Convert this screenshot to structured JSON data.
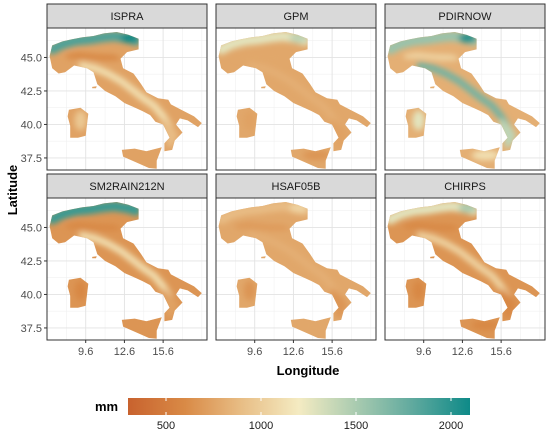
{
  "chart_data": {
    "type": "heatmap",
    "title": "",
    "xlabel": "Longitude",
    "ylabel": "Latitude",
    "x_ticks": [
      9.6,
      12.6,
      15.6
    ],
    "x_tick_labels": [
      "9.6",
      "12.6",
      "15.6"
    ],
    "y_ticks": [
      37.5,
      40.0,
      42.5,
      45.0
    ],
    "y_tick_labels": [
      "37.5",
      "40.0",
      "42.5",
      "45.0"
    ],
    "xlim": [
      6.6,
      19.0
    ],
    "ylim": [
      36.6,
      47.2
    ],
    "grid": true,
    "panels": [
      {
        "label": "ISPRA",
        "peak": 1.0,
        "alps": 0.85,
        "apennines": 0.35,
        "sardinia": 0.25,
        "sicily": 0.1,
        "south": 0.2,
        "valley": -0.25,
        "base": 0.1
      },
      {
        "label": "GPM",
        "peak": 0.55,
        "alps": 0.45,
        "apennines": 0.15,
        "sardinia": 0.1,
        "sicily": 0.05,
        "south": 0.1,
        "valley": 0.0,
        "base": 0.12
      },
      {
        "label": "PDIRNOW",
        "peak": 0.95,
        "alps": 0.65,
        "apennines": 0.75,
        "sardinia": 0.45,
        "sicily": 0.35,
        "south": 0.55,
        "valley": 0.15,
        "base": 0.15
      },
      {
        "label": "SM2RAIN212N",
        "peak": 0.9,
        "alps": 0.9,
        "apennines": 0.35,
        "sardinia": 0.0,
        "sicily": 0.05,
        "south": 0.1,
        "valley": -0.35,
        "base": 0.05
      },
      {
        "label": "HSAF05B",
        "peak": 0.3,
        "alps": 0.2,
        "apennines": 0.15,
        "sardinia": 0.05,
        "sicily": 0.12,
        "south": 0.05,
        "valley": -0.05,
        "base": 0.12
      },
      {
        "label": "CHIRPS",
        "peak": 0.6,
        "alps": 0.45,
        "apennines": 0.3,
        "sardinia": -0.1,
        "sicily": -0.05,
        "south": -0.1,
        "valley": -0.2,
        "base": 0.05
      }
    ],
    "legend": {
      "title": "mm",
      "placement": "bottom",
      "range": [
        300,
        2100
      ],
      "ticks": [
        500,
        1000,
        1500,
        2000
      ],
      "tick_labels": [
        "500",
        "1000",
        "1500",
        "2000"
      ],
      "colors": [
        "#c8622e",
        "#d98a46",
        "#e8be86",
        "#f4ebc2",
        "#a9cbb0",
        "#5fa99e",
        "#0e8a88"
      ]
    }
  }
}
